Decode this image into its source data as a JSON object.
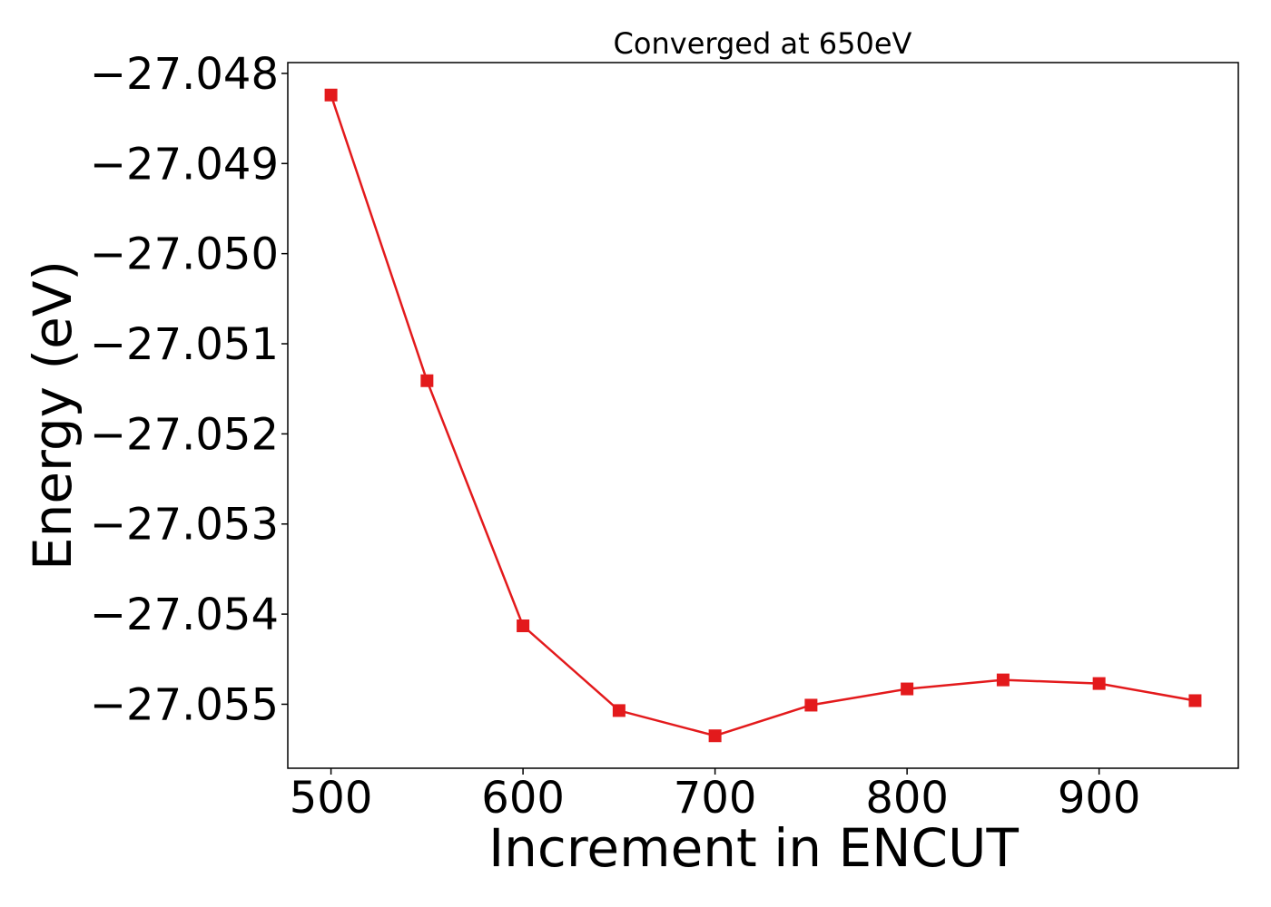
{
  "chart_data": {
    "type": "line",
    "title": "Converged at 650eV",
    "xlabel": "Increment in ENCUT",
    "ylabel": "Energy (eV)",
    "xlim": [
      477.5,
      972.5
    ],
    "ylim": [
      -27.05571,
      -27.04788
    ],
    "xticks": [
      500,
      600,
      700,
      800,
      900
    ],
    "xtick_labels": [
      "500",
      "600",
      "700",
      "800",
      "900"
    ],
    "yticks": [
      -27.048,
      -27.049,
      -27.05,
      -27.051,
      -27.052,
      -27.053,
      -27.054,
      -27.055
    ],
    "ytick_labels": [
      "−27.048",
      "−27.049",
      "−27.050",
      "−27.051",
      "−27.052",
      "−27.053",
      "−27.054",
      "−27.055"
    ],
    "grid": false,
    "series": [
      {
        "color": "#e31a1c",
        "marker": "square",
        "x": [
          500,
          550,
          600,
          650,
          700,
          750,
          800,
          850,
          900,
          950
        ],
        "y": [
          -27.04824,
          -27.05141,
          -27.05413,
          -27.05507,
          -27.05535,
          -27.05501,
          -27.05483,
          -27.05473,
          -27.05477,
          -27.05496
        ]
      }
    ]
  }
}
